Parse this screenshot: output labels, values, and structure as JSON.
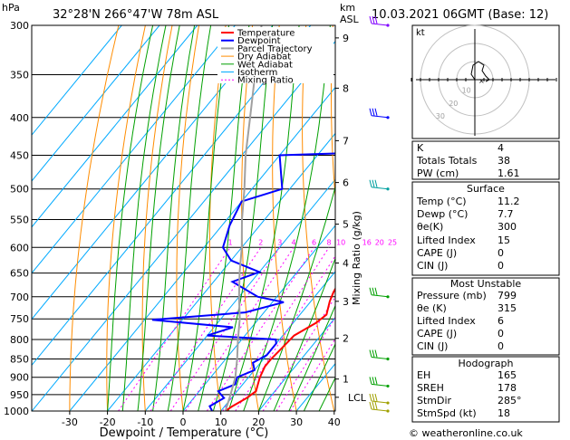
{
  "header": {
    "location": "32°28'N  266°47'W  78m  ASL",
    "datetime": "10.03.2021  06GMT  (Base: 12)",
    "hpa_label": "hPa",
    "km_label": "km",
    "asl_label": "ASL"
  },
  "chart_data": {
    "type": "line",
    "xlabel": "Dewpoint / Temperature (°C)",
    "ylabel_right": "Mixing Ratio (g/kg)",
    "x_ticks": [
      -30,
      -20,
      -10,
      0,
      10,
      20,
      30,
      40
    ],
    "pressure_levels": [
      300,
      350,
      400,
      450,
      500,
      550,
      600,
      650,
      700,
      750,
      800,
      850,
      900,
      950,
      1000
    ],
    "km_ticks": [
      {
        "label": "9",
        "p": 312
      },
      {
        "label": "8",
        "p": 365
      },
      {
        "label": "7",
        "p": 430
      },
      {
        "label": "6",
        "p": 490
      },
      {
        "label": "5",
        "p": 558
      },
      {
        "label": "4",
        "p": 630
      },
      {
        "label": "3",
        "p": 710
      },
      {
        "label": "2",
        "p": 797
      },
      {
        "label": "1",
        "p": 905
      },
      {
        "label": "LCL",
        "p": 958
      }
    ],
    "mixing_ratio_labels": [
      "1",
      "2",
      "3",
      "4",
      "6",
      "8",
      "10",
      "16",
      "20",
      "25"
    ],
    "mixing_ratio_values": [
      1,
      2,
      3,
      4,
      6,
      8,
      10,
      16,
      20,
      25
    ],
    "legend": [
      "Temperature",
      "Dewpoint",
      "Parcel Trajectory",
      "Dry Adiabat",
      "Wet Adiabat",
      "Isotherm",
      "Mixing Ratio"
    ],
    "series": [
      {
        "name": "Temperature",
        "points": [
          [
            11.2,
            1000
          ],
          [
            12,
            985
          ],
          [
            14,
            960
          ],
          [
            15,
            940
          ],
          [
            14,
            920
          ],
          [
            13,
            900
          ],
          [
            12,
            870
          ],
          [
            12,
            850
          ],
          [
            12.5,
            820
          ],
          [
            13,
            790
          ],
          [
            16,
            760
          ],
          [
            17,
            740
          ],
          [
            15,
            710
          ],
          [
            14,
            690
          ],
          [
            13,
            660
          ],
          [
            12,
            630
          ],
          [
            10,
            600
          ],
          [
            7,
            560
          ],
          [
            3,
            520
          ],
          [
            0,
            500
          ],
          [
            -4,
            470
          ],
          [
            -8,
            440
          ],
          [
            -12,
            410
          ],
          [
            -16,
            380
          ],
          [
            -20,
            350
          ],
          [
            -25,
            320
          ],
          [
            -28,
            300
          ]
        ]
      },
      {
        "name": "Dewpoint",
        "points": [
          [
            7.7,
            1000
          ],
          [
            6,
            985
          ],
          [
            8,
            960
          ],
          [
            5,
            940
          ],
          [
            8,
            920
          ],
          [
            7,
            900
          ],
          [
            10,
            880
          ],
          [
            8,
            860
          ],
          [
            10,
            840
          ],
          [
            10,
            810
          ],
          [
            9,
            800
          ],
          [
            -10,
            790
          ],
          [
            -5,
            770
          ],
          [
            -28,
            752
          ],
          [
            -5,
            735
          ],
          [
            3,
            712
          ],
          [
            -5,
            700
          ],
          [
            -15,
            668
          ],
          [
            -10,
            648
          ],
          [
            -20,
            625
          ],
          [
            -25,
            600
          ],
          [
            -28,
            560
          ],
          [
            -30,
            520
          ],
          [
            -22,
            500
          ],
          [
            -30,
            450
          ],
          [
            -2,
            445
          ],
          [
            -4,
            420
          ],
          [
            -8,
            395
          ],
          [
            -12,
            375
          ],
          [
            -14,
            350
          ],
          [
            -18,
            330
          ],
          [
            -17,
            318
          ],
          [
            -22,
            300
          ]
        ]
      },
      {
        "name": "Parcel Trajectory",
        "points": [
          [
            11.2,
            1000
          ],
          [
            9,
            950
          ],
          [
            6.5,
            900
          ],
          [
            3,
            850
          ],
          [
            -1,
            800
          ],
          [
            -5,
            750
          ],
          [
            -10,
            700
          ],
          [
            -15,
            650
          ],
          [
            -20,
            600
          ],
          [
            -26,
            550
          ],
          [
            -32,
            500
          ],
          [
            -39,
            450
          ],
          [
            -46,
            400
          ],
          [
            -54,
            350
          ],
          [
            -63,
            300
          ]
        ]
      }
    ],
    "hodograph": {
      "label": "kt",
      "ring_labels": [
        "10",
        "20",
        "30"
      ],
      "points": [
        [
          0,
          0
        ],
        [
          -2,
          3
        ],
        [
          -1,
          8
        ],
        [
          2,
          10
        ],
        [
          5,
          8
        ],
        [
          4,
          5
        ],
        [
          6,
          2
        ],
        [
          8,
          0
        ],
        [
          6,
          -1
        ]
      ]
    }
  },
  "indices": {
    "k_label": "K",
    "k": "4",
    "tt_label": "Totals Totals",
    "tt": "38",
    "pw_label": "PW (cm)",
    "pw": "1.61"
  },
  "surface": {
    "title": "Surface",
    "temp_label": "Temp (°C)",
    "temp": "11.2",
    "dewp_label": "Dewp (°C)",
    "dewp": "7.7",
    "theta_label": "θe(K)",
    "theta": "300",
    "li_label": "Lifted Index",
    "li": "15",
    "cape_label": "CAPE (J)",
    "cape": "0",
    "cin_label": "CIN (J)",
    "cin": "0"
  },
  "most_unstable": {
    "title": "Most Unstable",
    "pres_label": "Pressure (mb)",
    "pres": "799",
    "theta_label": "θe (K)",
    "theta": "315",
    "li_label": "Lifted Index",
    "li": "6",
    "cape_label": "CAPE (J)",
    "cape": "0",
    "cin_label": "CIN (J)",
    "cin": "0"
  },
  "hodograph_table": {
    "title": "Hodograph",
    "eh_label": "EH",
    "eh": "165",
    "sreh_label": "SREH",
    "sreh": "178",
    "stmdir_label": "StmDir",
    "stmdir": "285°",
    "stmspd_label": "StmSpd (kt)",
    "stmspd": "18"
  },
  "footer": {
    "copyright": "© weatheronline.co.uk"
  },
  "colors": {
    "temperature": "#ff0000",
    "dewpoint": "#0000ff",
    "parcel": "#a0a0a0",
    "dry_adiabat": "#ff8c00",
    "wet_adiabat": "#00a000",
    "isotherm": "#00aaff",
    "mixing_ratio": "#ff00ff"
  }
}
